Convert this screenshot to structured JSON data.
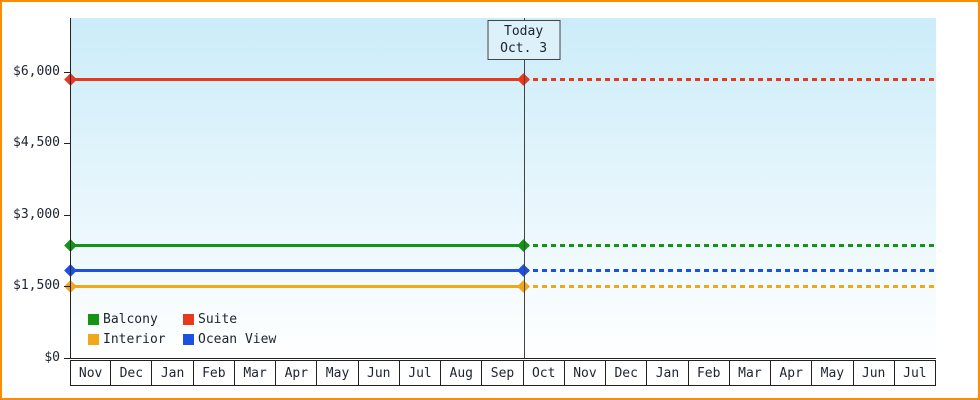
{
  "frame": {
    "border_color": "#ff8c00",
    "background": "#ffffff"
  },
  "chart_data": {
    "type": "line",
    "x_categories": [
      "Nov",
      "Dec",
      "Jan",
      "Feb",
      "Mar",
      "Apr",
      "May",
      "Jun",
      "Jul",
      "Aug",
      "Sep",
      "Oct",
      "Nov",
      "Dec",
      "Jan",
      "Feb",
      "Mar",
      "Apr",
      "May",
      "Jun",
      "Jul"
    ],
    "today_index": 11,
    "today_label": {
      "line1": "Today",
      "line2": "Oct. 3"
    },
    "y_ticks": [
      {
        "value": 0,
        "label": "$0"
      },
      {
        "value": 1500,
        "label": "$1,500"
      },
      {
        "value": 3000,
        "label": "$3,000"
      },
      {
        "value": 4500,
        "label": "$4,500"
      },
      {
        "value": 6000,
        "label": "$6,000"
      }
    ],
    "ylim": [
      0,
      7130
    ],
    "series": [
      {
        "name": "Suite",
        "value": 5850,
        "color": "#e8391b"
      },
      {
        "name": "Balcony",
        "value": 2350,
        "color": "#149414"
      },
      {
        "name": "Ocean View",
        "value": 1825,
        "color": "#1d4fe0"
      },
      {
        "name": "Interior",
        "value": 1500,
        "color": "#f0a818"
      }
    ],
    "legend_items": [
      "Balcony",
      "Suite",
      "Interior",
      "Ocean View"
    ],
    "legend_position": "bottom-left",
    "grid": false,
    "plot_colors": {
      "background_top": "#cbecf9",
      "background_bottom": "#ffffff",
      "axis": "#222222",
      "today_line": "#444444",
      "text": "#1c2430",
      "month_cell_bg": "#ffffff",
      "today_box_bg": "#ddf1fb"
    }
  }
}
